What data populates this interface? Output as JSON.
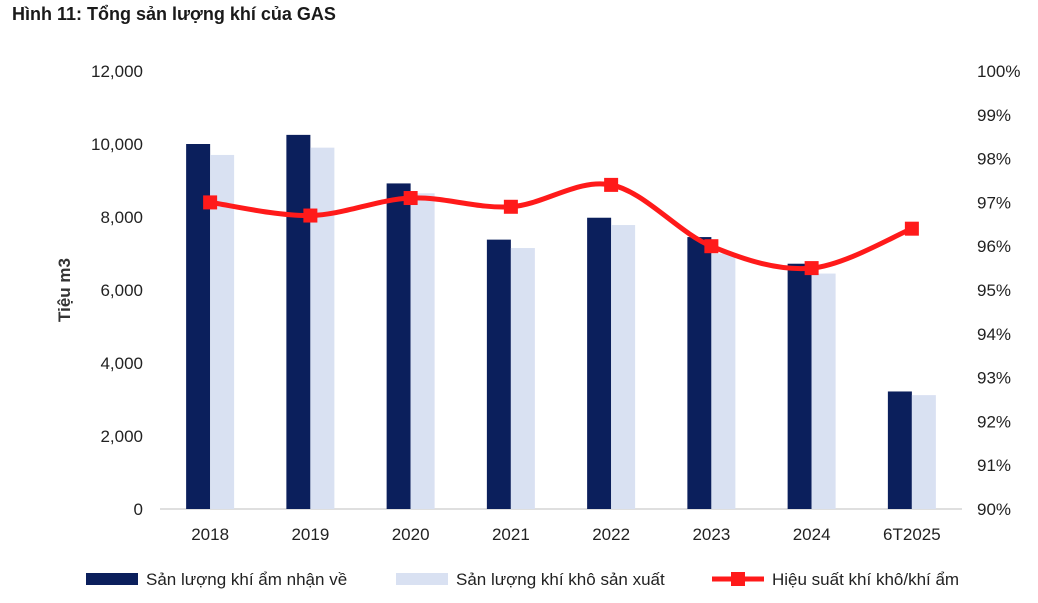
{
  "chart_data": {
    "type": "bar",
    "title": "Hình 11: Tổng sản lượng khí của GAS",
    "ylabel": "Tiệu m3",
    "ylim": [
      0,
      12000
    ],
    "yticks": [
      "0",
      "2,000",
      "4,000",
      "6,000",
      "8,000",
      "10,000",
      "12,000"
    ],
    "y2lim": [
      90,
      100
    ],
    "y2ticks": [
      "90%",
      "91%",
      "92%",
      "93%",
      "94%",
      "95%",
      "96%",
      "97%",
      "98%",
      "99%",
      "100%"
    ],
    "categories": [
      "2018",
      "2019",
      "2020",
      "2021",
      "2022",
      "2023",
      "2024",
      "6T2025"
    ],
    "series": [
      {
        "name": "Sản lượng khí ẩm nhận về",
        "type": "bar",
        "color": "#0b1f5c",
        "values": [
          10000,
          10250,
          8920,
          7380,
          7980,
          7450,
          6720,
          3220
        ]
      },
      {
        "name": "Sản lượng khí khô sản xuất",
        "type": "bar",
        "color": "#d9e1f2",
        "values": [
          9700,
          9900,
          8650,
          7150,
          7780,
          7000,
          6450,
          3120
        ]
      },
      {
        "name": "Hiệu suất khí khô/khí ẩm",
        "type": "line",
        "axis": "right",
        "color": "#ff1a1a",
        "values": [
          97.0,
          96.7,
          97.1,
          96.9,
          97.4,
          96.0,
          95.5,
          96.4
        ]
      }
    ]
  }
}
